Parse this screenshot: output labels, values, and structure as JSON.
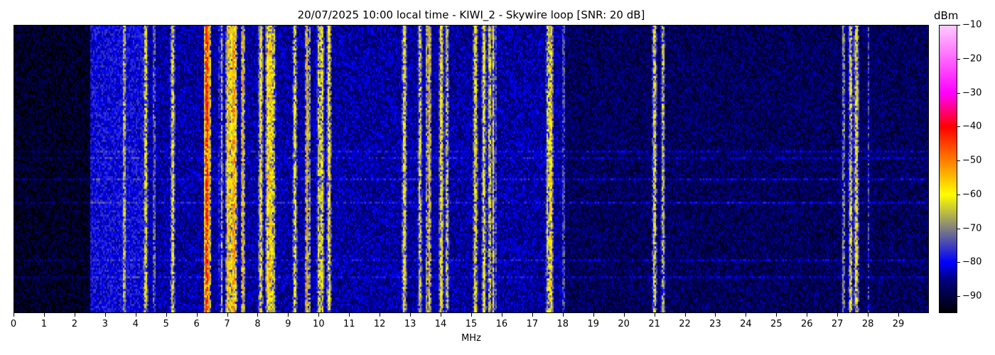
{
  "chart_data": {
    "type": "heatmap",
    "title": "20/07/2025 10:00 local time - KIWI_2 - Skywire loop [SNR: 20 dB]",
    "xlabel": "MHz",
    "xlim": [
      0,
      30
    ],
    "xticks": [
      0,
      1,
      2,
      3,
      4,
      5,
      6,
      7,
      8,
      9,
      10,
      11,
      12,
      13,
      14,
      15,
      16,
      17,
      18,
      19,
      20,
      21,
      22,
      23,
      24,
      25,
      26,
      27,
      28,
      29
    ],
    "colorbar": {
      "label": "dBm",
      "range": [
        -95,
        -10
      ],
      "ticks": [
        -10,
        -20,
        -30,
        -40,
        -50,
        -60,
        -70,
        -80,
        -90
      ],
      "colormap": [
        {
          "value": -95,
          "color": "#000000"
        },
        {
          "value": -85,
          "color": "#000080"
        },
        {
          "value": -80,
          "color": "#0000ff"
        },
        {
          "value": -70,
          "color": "#808080"
        },
        {
          "value": -60,
          "color": "#ffff00"
        },
        {
          "value": -50,
          "color": "#ff8000"
        },
        {
          "value": -40,
          "color": "#ff0000"
        },
        {
          "value": -30,
          "color": "#ff00ff"
        },
        {
          "value": -10,
          "color": "#ffccff"
        }
      ]
    },
    "noise_floor": [
      {
        "from": 0,
        "to": 2.5,
        "dbm": -92
      },
      {
        "from": 2.5,
        "to": 4.2,
        "dbm": -80
      },
      {
        "from": 4.2,
        "to": 18,
        "dbm": -84
      },
      {
        "from": 18,
        "to": 30,
        "dbm": -88
      }
    ],
    "carriers": [
      {
        "mhz": 3.6,
        "dbm": -66
      },
      {
        "mhz": 4.3,
        "dbm": -62
      },
      {
        "mhz": 4.6,
        "dbm": -72
      },
      {
        "mhz": 5.2,
        "dbm": -62
      },
      {
        "mhz": 6.3,
        "dbm": -42
      },
      {
        "mhz": 6.35,
        "dbm": -52
      },
      {
        "mhz": 6.8,
        "dbm": -64
      },
      {
        "mhz": 7.0,
        "dbm": -56
      },
      {
        "mhz": 7.1,
        "dbm": -60
      },
      {
        "mhz": 7.2,
        "dbm": -52
      },
      {
        "mhz": 7.25,
        "dbm": -62
      },
      {
        "mhz": 7.5,
        "dbm": -54
      },
      {
        "mhz": 8.1,
        "dbm": -60
      },
      {
        "mhz": 8.3,
        "dbm": -58
      },
      {
        "mhz": 8.4,
        "dbm": -56
      },
      {
        "mhz": 8.5,
        "dbm": -64
      },
      {
        "mhz": 9.2,
        "dbm": -62
      },
      {
        "mhz": 9.6,
        "dbm": -54
      },
      {
        "mhz": 10.0,
        "dbm": -64
      },
      {
        "mhz": 10.1,
        "dbm": -62
      },
      {
        "mhz": 10.3,
        "dbm": -60
      },
      {
        "mhz": 12.8,
        "dbm": -60
      },
      {
        "mhz": 13.3,
        "dbm": -64
      },
      {
        "mhz": 13.6,
        "dbm": -54
      },
      {
        "mhz": 14.0,
        "dbm": -60
      },
      {
        "mhz": 14.2,
        "dbm": -66
      },
      {
        "mhz": 15.1,
        "dbm": -60
      },
      {
        "mhz": 15.4,
        "dbm": -62
      },
      {
        "mhz": 15.6,
        "dbm": -64
      },
      {
        "mhz": 15.7,
        "dbm": -60
      },
      {
        "mhz": 17.5,
        "dbm": -64
      },
      {
        "mhz": 17.6,
        "dbm": -58
      },
      {
        "mhz": 18.0,
        "dbm": -74
      },
      {
        "mhz": 21.0,
        "dbm": -62
      },
      {
        "mhz": 21.25,
        "dbm": -66
      },
      {
        "mhz": 27.2,
        "dbm": -70
      },
      {
        "mhz": 27.4,
        "dbm": -64
      },
      {
        "mhz": 27.6,
        "dbm": -60
      },
      {
        "mhz": 28.0,
        "dbm": -74
      }
    ]
  }
}
